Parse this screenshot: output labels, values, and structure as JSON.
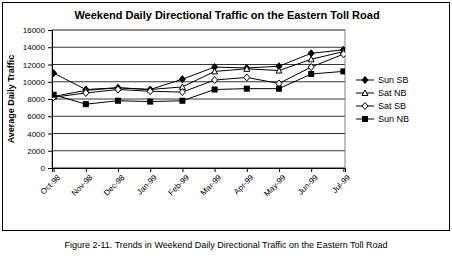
{
  "chart_data": {
    "type": "line",
    "title": "Weekend Daily Directional Traffic on the Eastern Toll Road",
    "caption": "Figure 2-11. Trends in Weekend Daily Directional Traffic on the Eastern Toll Road",
    "y_label": "Average Daily Traffic",
    "categories": [
      "Oct-98",
      "Nov-98",
      "Dec-98",
      "Jan-99",
      "Feb-99",
      "Mar-99",
      "Apr-99",
      "May-99",
      "Jun-99",
      "Jul-99"
    ],
    "series": [
      {
        "name": "Sun SB",
        "color": "#000000",
        "marker": "diamond",
        "values": [
          11000,
          9100,
          9300,
          9100,
          10300,
          11700,
          11600,
          11800,
          13300,
          13700
        ]
      },
      {
        "name": "Sat NB",
        "color": "#000000",
        "marker": "triangle-open",
        "values": [
          8300,
          9000,
          9300,
          9100,
          9400,
          11200,
          11500,
          11300,
          12600,
          13500
        ]
      },
      {
        "name": "Sat SB",
        "color": "#000000",
        "marker": "diamond-open",
        "values": [
          8200,
          8700,
          9100,
          8900,
          8800,
          10200,
          10500,
          9800,
          11700,
          13200
        ]
      },
      {
        "name": "Sun NB",
        "color": "#000000",
        "marker": "square",
        "values": [
          8500,
          7400,
          7800,
          7700,
          7800,
          9100,
          9200,
          9200,
          10900,
          11200
        ]
      }
    ],
    "ylim": [
      0,
      16000
    ],
    "yticks": [
      0,
      2000,
      4000,
      6000,
      8000,
      10000,
      12000,
      14000,
      16000
    ],
    "grid": true,
    "legend": "right"
  }
}
